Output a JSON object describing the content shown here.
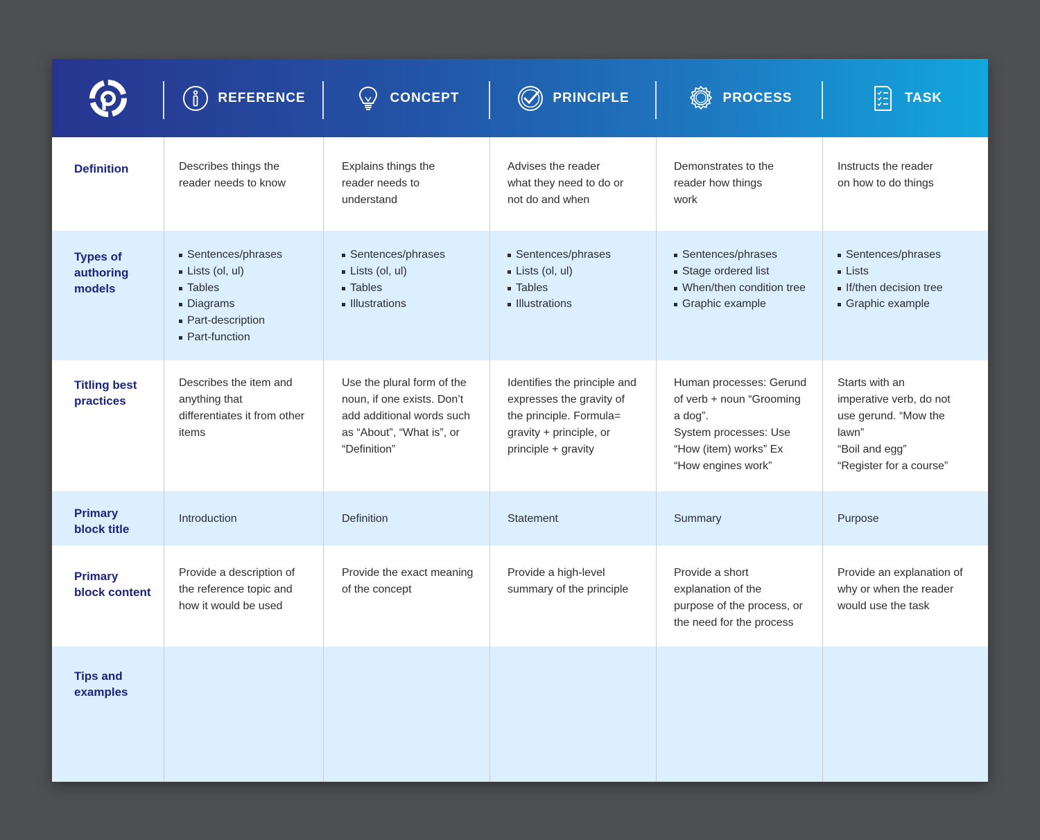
{
  "colors": {
    "page_bg": "#4e4f51",
    "header_start": "#27358f",
    "header_end": "#11a7dd",
    "row_label": "#1a237e",
    "row_blue": "#dcefff"
  },
  "header": {
    "logo_icon": "target-logo-icon",
    "columns": [
      {
        "label": "REFERENCE",
        "icon": "info-icon"
      },
      {
        "label": "CONCEPT",
        "icon": "lightbulb-icon"
      },
      {
        "label": "PRINCIPLE",
        "icon": "checkmark-circle-icon"
      },
      {
        "label": "PROCESS",
        "icon": "gear-icon"
      },
      {
        "label": "TASK",
        "icon": "checklist-icon"
      }
    ]
  },
  "rows": {
    "definition": {
      "label": "Definition",
      "cells": [
        "Describes things the\nreader needs to know",
        "Explains things the\nreader needs to\nunderstand",
        "Advises the reader\nwhat they need to do or\nnot do and when",
        "Demonstrates to the\nreader how things\nwork",
        "Instructs the reader\non how to do things"
      ]
    },
    "types": {
      "label": "Types of\nauthoring\nmodels",
      "lists": [
        [
          "Sentences/phrases",
          "Lists (ol, ul)",
          "Tables",
          "Diagrams",
          "Part-description",
          "Part-function"
        ],
        [
          "Sentences/phrases",
          "Lists (ol, ul)",
          "Tables",
          "Illustrations"
        ],
        [
          "Sentences/phrases",
          "Lists (ol, ul)",
          "Tables",
          "Illustrations"
        ],
        [
          "Sentences/phrases",
          "Stage ordered list",
          "When/then condition tree",
          "Graphic example"
        ],
        [
          "Sentences/phrases",
          "Lists",
          "If/then decision tree",
          "Graphic example"
        ]
      ]
    },
    "titling": {
      "label": "Titling best\npractices",
      "cells": [
        "Describes the item and\nanything that\ndifferentiates it from other\nitems",
        "Use the plural form of the\nnoun, if one exists. Don’t\nadd additional words such\nas “About”, “What is”, or\n“Definition”",
        "Identifies the principle and\nexpresses the gravity of\nthe principle. Formula=\ngravity + principle, or\nprinciple + gravity",
        "Human processes: Gerund\nof verb + noun “Grooming\na dog”.\nSystem processes: Use\n“How (item) works”  Ex\n“How engines work”",
        "Starts with an\nimperative verb, do not\nuse gerund. “Mow the\nlawn”\n“Boil and egg”\n“Register for a course”"
      ]
    },
    "block_title": {
      "label": "Primary\nblock title",
      "cells": [
        "Introduction",
        "Definition",
        "Statement",
        "Summary",
        "Purpose"
      ]
    },
    "block_content": {
      "label": "Primary\nblock content",
      "cells": [
        "Provide a description of\nthe reference topic and\nhow it would be used",
        "Provide the exact meaning\nof the concept",
        "Provide a high-level\nsummary of the principle",
        "Provide a short\nexplanation of the\npurpose of the process, or\nthe need for the process",
        "Provide an explanation of\nwhy or when the reader\nwould use the task"
      ]
    },
    "tips": {
      "label": "Tips and\nexamples"
    }
  }
}
